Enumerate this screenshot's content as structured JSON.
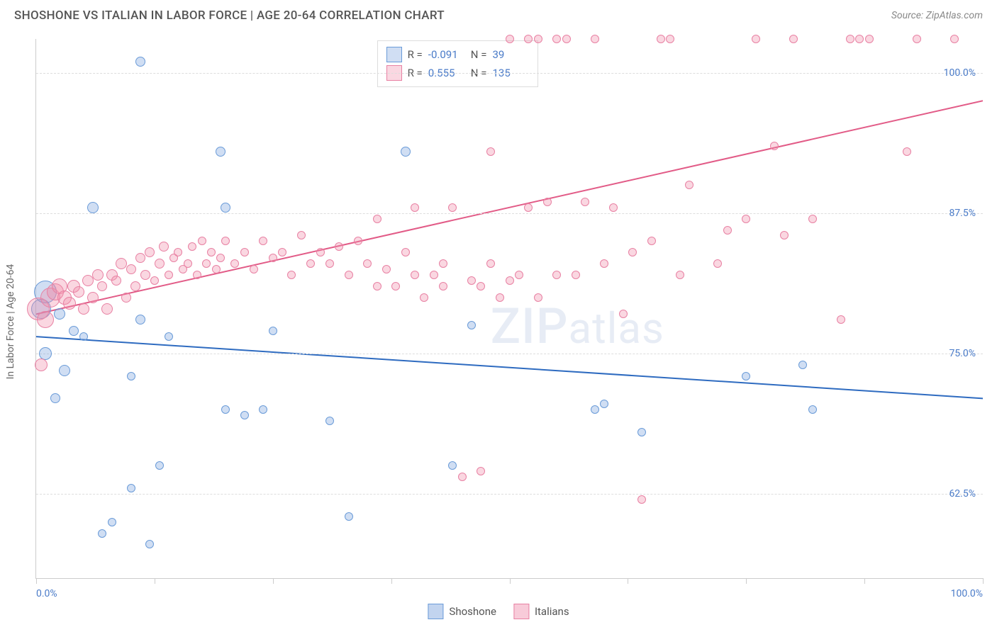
{
  "header": {
    "title": "SHOSHONE VS ITALIAN IN LABOR FORCE | AGE 20-64 CORRELATION CHART",
    "source": "Source: ZipAtlas.com"
  },
  "chart": {
    "type": "scatter",
    "y_axis_label": "In Labor Force | Age 20-64",
    "x_min": 0,
    "x_max": 100,
    "y_min": 55,
    "y_max": 103,
    "x_label_min": "0.0%",
    "x_label_max": "100.0%",
    "y_gridlines": [
      62.5,
      75.0,
      87.5,
      100.0
    ],
    "y_tick_labels": [
      "62.5%",
      "75.0%",
      "87.5%",
      "100.0%"
    ],
    "x_ticks": [
      0,
      12.5,
      25,
      37.5,
      50,
      62.5,
      75,
      87.5,
      100
    ],
    "background_color": "#ffffff",
    "grid_color": "#dddddd",
    "axis_color": "#cccccc",
    "watermark": "ZIPatlas",
    "series": [
      {
        "name": "Shoshone",
        "color_fill": "rgba(120,160,220,0.35)",
        "color_stroke": "#6a9bd8",
        "trend_color": "#2e6bc0",
        "trend": {
          "x1": 0,
          "y1": 76.5,
          "x2": 100,
          "y2": 71.0
        },
        "stats": {
          "R": "-0.091",
          "N": "39"
        },
        "points": [
          {
            "x": 0.5,
            "y": 79,
            "r": 14
          },
          {
            "x": 1,
            "y": 80.5,
            "r": 16
          },
          {
            "x": 1,
            "y": 75,
            "r": 9
          },
          {
            "x": 3,
            "y": 73.5,
            "r": 8
          },
          {
            "x": 2,
            "y": 71,
            "r": 7
          },
          {
            "x": 2.5,
            "y": 78.5,
            "r": 8
          },
          {
            "x": 4,
            "y": 77,
            "r": 7
          },
          {
            "x": 5,
            "y": 76.5,
            "r": 6
          },
          {
            "x": 11,
            "y": 101,
            "r": 7
          },
          {
            "x": 6,
            "y": 88,
            "r": 8
          },
          {
            "x": 19.5,
            "y": 93,
            "r": 7
          },
          {
            "x": 20,
            "y": 88,
            "r": 7
          },
          {
            "x": 11,
            "y": 78,
            "r": 7
          },
          {
            "x": 14,
            "y": 76.5,
            "r": 6
          },
          {
            "x": 10,
            "y": 73,
            "r": 6
          },
          {
            "x": 10,
            "y": 63,
            "r": 6
          },
          {
            "x": 8,
            "y": 60,
            "r": 6
          },
          {
            "x": 7,
            "y": 59,
            "r": 6
          },
          {
            "x": 12,
            "y": 58,
            "r": 6
          },
          {
            "x": 13,
            "y": 65,
            "r": 6
          },
          {
            "x": 20,
            "y": 70,
            "r": 6
          },
          {
            "x": 22,
            "y": 69.5,
            "r": 6
          },
          {
            "x": 24,
            "y": 70,
            "r": 6
          },
          {
            "x": 25,
            "y": 77,
            "r": 6
          },
          {
            "x": 31,
            "y": 69,
            "r": 6
          },
          {
            "x": 33,
            "y": 60.5,
            "r": 6
          },
          {
            "x": 39,
            "y": 93,
            "r": 7
          },
          {
            "x": 44,
            "y": 65,
            "r": 6
          },
          {
            "x": 46,
            "y": 77.5,
            "r": 6
          },
          {
            "x": 59,
            "y": 70,
            "r": 6
          },
          {
            "x": 60,
            "y": 70.5,
            "r": 6
          },
          {
            "x": 64,
            "y": 68,
            "r": 6
          },
          {
            "x": 75,
            "y": 73,
            "r": 6
          },
          {
            "x": 81,
            "y": 74,
            "r": 6
          },
          {
            "x": 82,
            "y": 70,
            "r": 6
          }
        ]
      },
      {
        "name": "Italians",
        "color_fill": "rgba(240,140,170,0.35)",
        "color_stroke": "#e881a3",
        "trend_color": "#e25b87",
        "trend": {
          "x1": 0,
          "y1": 78.5,
          "x2": 100,
          "y2": 97.5
        },
        "stats": {
          "R": "0.555",
          "N": "135"
        },
        "points": [
          {
            "x": 0.2,
            "y": 79,
            "r": 16
          },
          {
            "x": 0.5,
            "y": 74,
            "r": 9
          },
          {
            "x": 1,
            "y": 78,
            "r": 12
          },
          {
            "x": 1.5,
            "y": 80,
            "r": 14
          },
          {
            "x": 2,
            "y": 80.5,
            "r": 12
          },
          {
            "x": 2.5,
            "y": 81,
            "r": 11
          },
          {
            "x": 3,
            "y": 80,
            "r": 10
          },
          {
            "x": 3.5,
            "y": 79.5,
            "r": 9
          },
          {
            "x": 4,
            "y": 81,
            "r": 9
          },
          {
            "x": 4.5,
            "y": 80.5,
            "r": 8
          },
          {
            "x": 5,
            "y": 79,
            "r": 8
          },
          {
            "x": 5.5,
            "y": 81.5,
            "r": 8
          },
          {
            "x": 6,
            "y": 80,
            "r": 8
          },
          {
            "x": 6.5,
            "y": 82,
            "r": 8
          },
          {
            "x": 7,
            "y": 81,
            "r": 7
          },
          {
            "x": 7.5,
            "y": 79,
            "r": 8
          },
          {
            "x": 8,
            "y": 82,
            "r": 8
          },
          {
            "x": 8.5,
            "y": 81.5,
            "r": 7
          },
          {
            "x": 9,
            "y": 83,
            "r": 8
          },
          {
            "x": 9.5,
            "y": 80,
            "r": 7
          },
          {
            "x": 10,
            "y": 82.5,
            "r": 7
          },
          {
            "x": 10.5,
            "y": 81,
            "r": 7
          },
          {
            "x": 11,
            "y": 83.5,
            "r": 7
          },
          {
            "x": 11.5,
            "y": 82,
            "r": 7
          },
          {
            "x": 12,
            "y": 84,
            "r": 7
          },
          {
            "x": 12.5,
            "y": 81.5,
            "r": 6
          },
          {
            "x": 13,
            "y": 83,
            "r": 7
          },
          {
            "x": 13.5,
            "y": 84.5,
            "r": 7
          },
          {
            "x": 14,
            "y": 82,
            "r": 6
          },
          {
            "x": 14.5,
            "y": 83.5,
            "r": 6
          },
          {
            "x": 15,
            "y": 84,
            "r": 6
          },
          {
            "x": 15.5,
            "y": 82.5,
            "r": 6
          },
          {
            "x": 16,
            "y": 83,
            "r": 6
          },
          {
            "x": 16.5,
            "y": 84.5,
            "r": 6
          },
          {
            "x": 17,
            "y": 82,
            "r": 6
          },
          {
            "x": 17.5,
            "y": 85,
            "r": 6
          },
          {
            "x": 18,
            "y": 83,
            "r": 6
          },
          {
            "x": 18.5,
            "y": 84,
            "r": 6
          },
          {
            "x": 19,
            "y": 82.5,
            "r": 6
          },
          {
            "x": 19.5,
            "y": 83.5,
            "r": 6
          },
          {
            "x": 20,
            "y": 85,
            "r": 6
          },
          {
            "x": 21,
            "y": 83,
            "r": 6
          },
          {
            "x": 22,
            "y": 84,
            "r": 6
          },
          {
            "x": 23,
            "y": 82.5,
            "r": 6
          },
          {
            "x": 24,
            "y": 85,
            "r": 6
          },
          {
            "x": 25,
            "y": 83.5,
            "r": 6
          },
          {
            "x": 26,
            "y": 84,
            "r": 6
          },
          {
            "x": 27,
            "y": 82,
            "r": 6
          },
          {
            "x": 28,
            "y": 85.5,
            "r": 6
          },
          {
            "x": 29,
            "y": 83,
            "r": 6
          },
          {
            "x": 30,
            "y": 84,
            "r": 6
          },
          {
            "x": 31,
            "y": 83,
            "r": 6
          },
          {
            "x": 32,
            "y": 84.5,
            "r": 6
          },
          {
            "x": 33,
            "y": 82,
            "r": 6
          },
          {
            "x": 34,
            "y": 85,
            "r": 6
          },
          {
            "x": 35,
            "y": 83,
            "r": 6
          },
          {
            "x": 36,
            "y": 81,
            "r": 6
          },
          {
            "x": 36,
            "y": 87,
            "r": 6
          },
          {
            "x": 37,
            "y": 82.5,
            "r": 6
          },
          {
            "x": 38,
            "y": 81,
            "r": 6
          },
          {
            "x": 39,
            "y": 84,
            "r": 6
          },
          {
            "x": 40,
            "y": 82,
            "r": 6
          },
          {
            "x": 40,
            "y": 88,
            "r": 6
          },
          {
            "x": 41,
            "y": 80,
            "r": 6
          },
          {
            "x": 42,
            "y": 82,
            "r": 6
          },
          {
            "x": 43,
            "y": 83,
            "r": 6
          },
          {
            "x": 43,
            "y": 81,
            "r": 6
          },
          {
            "x": 44,
            "y": 88,
            "r": 6
          },
          {
            "x": 45,
            "y": 64,
            "r": 6
          },
          {
            "x": 46,
            "y": 81.5,
            "r": 6
          },
          {
            "x": 47,
            "y": 64.5,
            "r": 6
          },
          {
            "x": 47,
            "y": 81,
            "r": 6
          },
          {
            "x": 48,
            "y": 83,
            "r": 6
          },
          {
            "x": 48,
            "y": 93,
            "r": 6
          },
          {
            "x": 49,
            "y": 80,
            "r": 6
          },
          {
            "x": 50,
            "y": 81.5,
            "r": 6
          },
          {
            "x": 50,
            "y": 103,
            "r": 6
          },
          {
            "x": 51,
            "y": 82,
            "r": 6
          },
          {
            "x": 52,
            "y": 88,
            "r": 6
          },
          {
            "x": 52,
            "y": 103,
            "r": 6
          },
          {
            "x": 53,
            "y": 80,
            "r": 6
          },
          {
            "x": 53,
            "y": 103,
            "r": 6
          },
          {
            "x": 54,
            "y": 88.5,
            "r": 6
          },
          {
            "x": 55,
            "y": 82,
            "r": 6
          },
          {
            "x": 55,
            "y": 103,
            "r": 6
          },
          {
            "x": 56,
            "y": 103,
            "r": 6
          },
          {
            "x": 57,
            "y": 82,
            "r": 6
          },
          {
            "x": 58,
            "y": 88.5,
            "r": 6
          },
          {
            "x": 59,
            "y": 103,
            "r": 6
          },
          {
            "x": 60,
            "y": 83,
            "r": 6
          },
          {
            "x": 61,
            "y": 88,
            "r": 6
          },
          {
            "x": 62,
            "y": 78.5,
            "r": 6
          },
          {
            "x": 63,
            "y": 84,
            "r": 6
          },
          {
            "x": 64,
            "y": 62,
            "r": 6
          },
          {
            "x": 65,
            "y": 85,
            "r": 6
          },
          {
            "x": 66,
            "y": 103,
            "r": 6
          },
          {
            "x": 67,
            "y": 103,
            "r": 6
          },
          {
            "x": 68,
            "y": 82,
            "r": 6
          },
          {
            "x": 69,
            "y": 90,
            "r": 6
          },
          {
            "x": 72,
            "y": 83,
            "r": 6
          },
          {
            "x": 73,
            "y": 86,
            "r": 6
          },
          {
            "x": 75,
            "y": 87,
            "r": 6
          },
          {
            "x": 76,
            "y": 103,
            "r": 6
          },
          {
            "x": 78,
            "y": 93.5,
            "r": 6
          },
          {
            "x": 79,
            "y": 85.5,
            "r": 6
          },
          {
            "x": 80,
            "y": 103,
            "r": 6
          },
          {
            "x": 82,
            "y": 87,
            "r": 6
          },
          {
            "x": 85,
            "y": 78,
            "r": 6
          },
          {
            "x": 86,
            "y": 103,
            "r": 6
          },
          {
            "x": 87,
            "y": 103,
            "r": 6
          },
          {
            "x": 88,
            "y": 103,
            "r": 6
          },
          {
            "x": 92,
            "y": 93,
            "r": 6
          },
          {
            "x": 93,
            "y": 103,
            "r": 6
          },
          {
            "x": 97,
            "y": 103,
            "r": 6
          }
        ]
      }
    ]
  },
  "legend": {
    "items": [
      {
        "label": "Shoshone",
        "fill": "rgba(120,160,220,0.45)",
        "stroke": "#6a9bd8"
      },
      {
        "label": "Italians",
        "fill": "rgba(240,140,170,0.45)",
        "stroke": "#e881a3"
      }
    ]
  }
}
